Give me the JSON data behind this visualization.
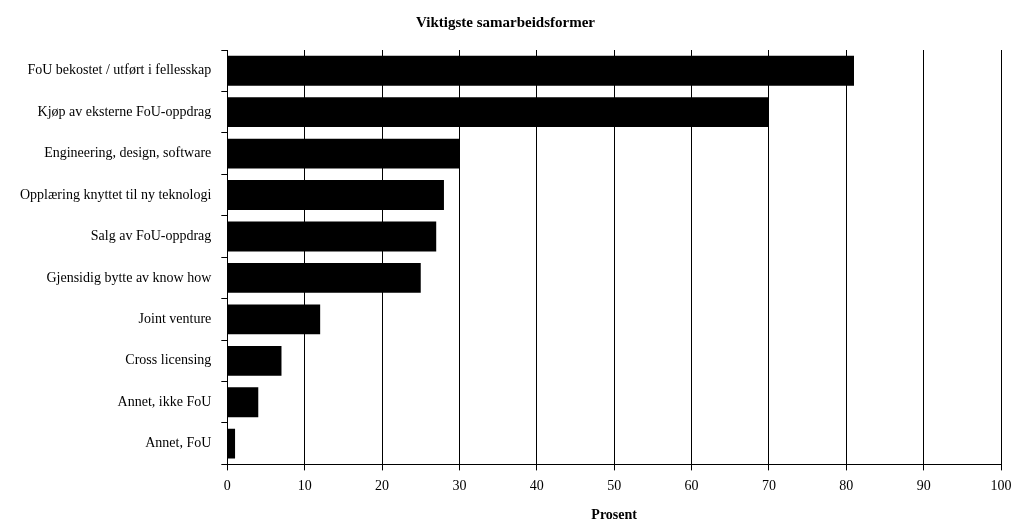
{
  "chart_data": {
    "type": "bar",
    "orientation": "horizontal",
    "title": "Viktigste samarbeidsformer",
    "xlabel": "Prosent",
    "categories": [
      "FoU bekostet / utført i fellesskap",
      "Kjøp av eksterne FoU-oppdrag",
      "Engineering, design, software",
      "Opplæring knyttet til ny teknologi",
      "Salg av FoU-oppdrag",
      "Gjensidig bytte av know how",
      "Joint venture",
      "Cross licensing",
      "Annet, ikke FoU",
      "Annet, FoU"
    ],
    "values": [
      81,
      70,
      30,
      28,
      27,
      25,
      12,
      7,
      4,
      1
    ],
    "color": "#000000",
    "xlim": [
      0,
      100
    ],
    "xticks": [
      0,
      10,
      20,
      30,
      40,
      50,
      60,
      70,
      80,
      90,
      100
    ],
    "grid": "x",
    "legend": false
  }
}
